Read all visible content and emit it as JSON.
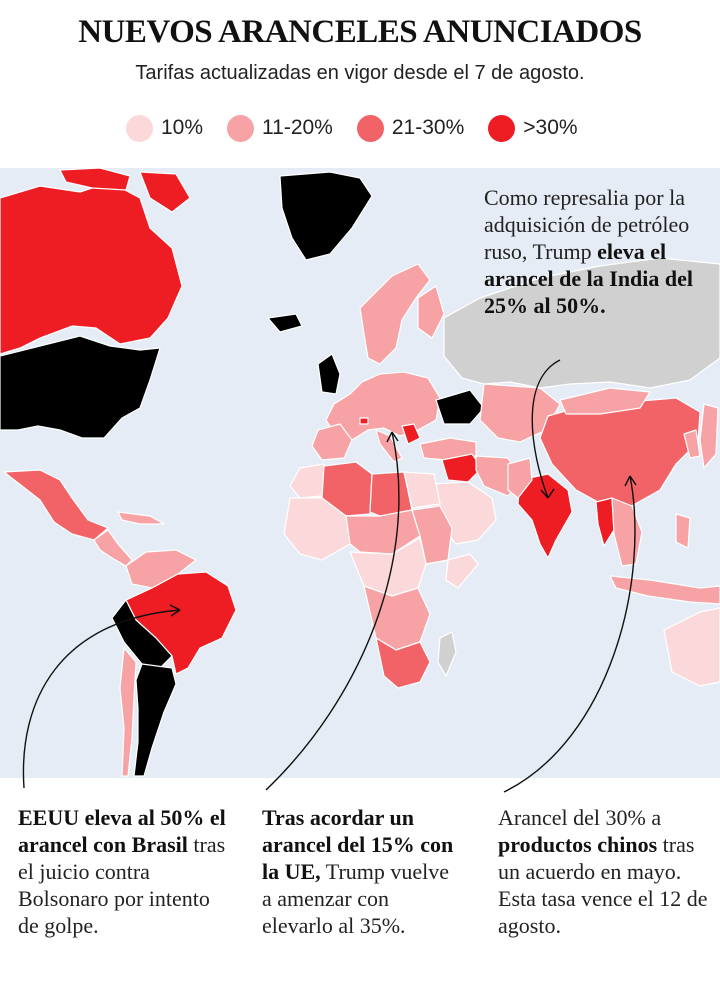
{
  "title": "NUEVOS ARANCELES ANUNCIADOS",
  "subtitle": "Tarifas actualizadas en vigor desde  el 7 de agosto.",
  "legend": [
    {
      "label": "10%",
      "color": "#fbd9da"
    },
    {
      "label": "11-20%",
      "color": "#f7a3a5"
    },
    {
      "label": "21-30%",
      "color": "#f26367"
    },
    {
      "label": ">30%",
      "color": "#ee1c23"
    }
  ],
  "colors": {
    "ocean": "#e6ecf5",
    "border": "#ffffff",
    "no_data": "#d0d0d0"
  },
  "notes": {
    "india": {
      "plain1": "Como represalia por la adquisición de petróleo ruso, Trump ",
      "bold1": "eleva el arancel de la India del 25% al 50%."
    },
    "brasil": {
      "bold1": "EEUU eleva al 50% el arancel con Brasil",
      "plain1": " tras el juicio contra Bolsonaro por intento de golpe."
    },
    "ue": {
      "bold1": "Tras acordar un arancel del 15% con la UE,",
      "plain1": " Trump vuelve a amenzar con elevarlo al 35%."
    },
    "china": {
      "plain1": "Arancel del 30% a ",
      "bold1": "productos chinos",
      "plain2": " tras un acuerdo en mayo. Esta tasa vence el 12 de agosto."
    }
  }
}
